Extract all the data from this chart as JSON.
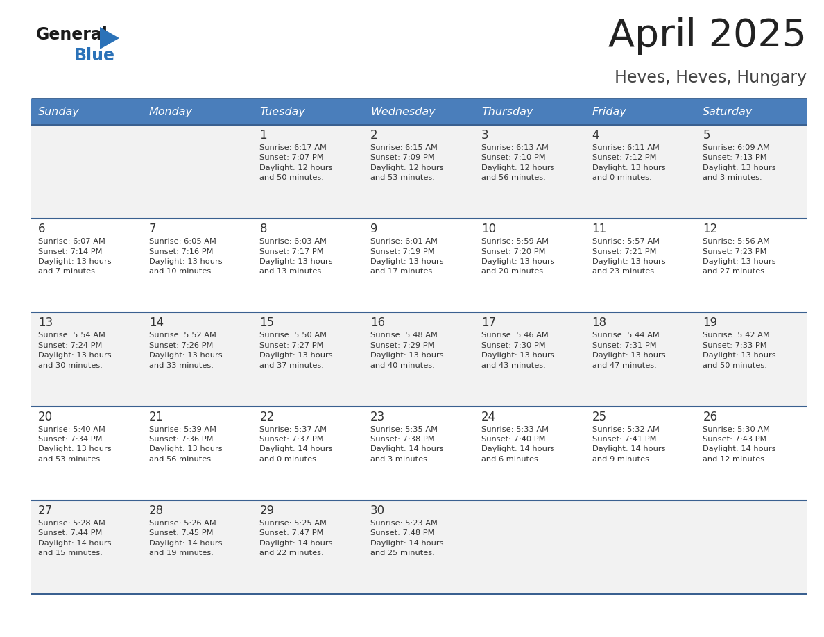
{
  "title": "April 2025",
  "subtitle": "Heves, Heves, Hungary",
  "days_of_week": [
    "Sunday",
    "Monday",
    "Tuesday",
    "Wednesday",
    "Thursday",
    "Friday",
    "Saturday"
  ],
  "header_bg": "#4a7ebb",
  "header_text": "#ffffff",
  "row_bg_even": "#f2f2f2",
  "row_bg_odd": "#ffffff",
  "divider_color": "#3a6090",
  "cell_text_color": "#333333",
  "day_num_color": "#333333",
  "logo_black": "#1a1a1a",
  "logo_blue": "#2b72b8",
  "title_color": "#222222",
  "subtitle_color": "#444444",
  "calendar_data": [
    [
      {
        "day": "",
        "sunrise": "",
        "sunset": "",
        "daylight": ""
      },
      {
        "day": "",
        "sunrise": "",
        "sunset": "",
        "daylight": ""
      },
      {
        "day": "1",
        "sunrise": "Sunrise: 6:17 AM",
        "sunset": "Sunset: 7:07 PM",
        "daylight": "Daylight: 12 hours\nand 50 minutes."
      },
      {
        "day": "2",
        "sunrise": "Sunrise: 6:15 AM",
        "sunset": "Sunset: 7:09 PM",
        "daylight": "Daylight: 12 hours\nand 53 minutes."
      },
      {
        "day": "3",
        "sunrise": "Sunrise: 6:13 AM",
        "sunset": "Sunset: 7:10 PM",
        "daylight": "Daylight: 12 hours\nand 56 minutes."
      },
      {
        "day": "4",
        "sunrise": "Sunrise: 6:11 AM",
        "sunset": "Sunset: 7:12 PM",
        "daylight": "Daylight: 13 hours\nand 0 minutes."
      },
      {
        "day": "5",
        "sunrise": "Sunrise: 6:09 AM",
        "sunset": "Sunset: 7:13 PM",
        "daylight": "Daylight: 13 hours\nand 3 minutes."
      }
    ],
    [
      {
        "day": "6",
        "sunrise": "Sunrise: 6:07 AM",
        "sunset": "Sunset: 7:14 PM",
        "daylight": "Daylight: 13 hours\nand 7 minutes."
      },
      {
        "day": "7",
        "sunrise": "Sunrise: 6:05 AM",
        "sunset": "Sunset: 7:16 PM",
        "daylight": "Daylight: 13 hours\nand 10 minutes."
      },
      {
        "day": "8",
        "sunrise": "Sunrise: 6:03 AM",
        "sunset": "Sunset: 7:17 PM",
        "daylight": "Daylight: 13 hours\nand 13 minutes."
      },
      {
        "day": "9",
        "sunrise": "Sunrise: 6:01 AM",
        "sunset": "Sunset: 7:19 PM",
        "daylight": "Daylight: 13 hours\nand 17 minutes."
      },
      {
        "day": "10",
        "sunrise": "Sunrise: 5:59 AM",
        "sunset": "Sunset: 7:20 PM",
        "daylight": "Daylight: 13 hours\nand 20 minutes."
      },
      {
        "day": "11",
        "sunrise": "Sunrise: 5:57 AM",
        "sunset": "Sunset: 7:21 PM",
        "daylight": "Daylight: 13 hours\nand 23 minutes."
      },
      {
        "day": "12",
        "sunrise": "Sunrise: 5:56 AM",
        "sunset": "Sunset: 7:23 PM",
        "daylight": "Daylight: 13 hours\nand 27 minutes."
      }
    ],
    [
      {
        "day": "13",
        "sunrise": "Sunrise: 5:54 AM",
        "sunset": "Sunset: 7:24 PM",
        "daylight": "Daylight: 13 hours\nand 30 minutes."
      },
      {
        "day": "14",
        "sunrise": "Sunrise: 5:52 AM",
        "sunset": "Sunset: 7:26 PM",
        "daylight": "Daylight: 13 hours\nand 33 minutes."
      },
      {
        "day": "15",
        "sunrise": "Sunrise: 5:50 AM",
        "sunset": "Sunset: 7:27 PM",
        "daylight": "Daylight: 13 hours\nand 37 minutes."
      },
      {
        "day": "16",
        "sunrise": "Sunrise: 5:48 AM",
        "sunset": "Sunset: 7:29 PM",
        "daylight": "Daylight: 13 hours\nand 40 minutes."
      },
      {
        "day": "17",
        "sunrise": "Sunrise: 5:46 AM",
        "sunset": "Sunset: 7:30 PM",
        "daylight": "Daylight: 13 hours\nand 43 minutes."
      },
      {
        "day": "18",
        "sunrise": "Sunrise: 5:44 AM",
        "sunset": "Sunset: 7:31 PM",
        "daylight": "Daylight: 13 hours\nand 47 minutes."
      },
      {
        "day": "19",
        "sunrise": "Sunrise: 5:42 AM",
        "sunset": "Sunset: 7:33 PM",
        "daylight": "Daylight: 13 hours\nand 50 minutes."
      }
    ],
    [
      {
        "day": "20",
        "sunrise": "Sunrise: 5:40 AM",
        "sunset": "Sunset: 7:34 PM",
        "daylight": "Daylight: 13 hours\nand 53 minutes."
      },
      {
        "day": "21",
        "sunrise": "Sunrise: 5:39 AM",
        "sunset": "Sunset: 7:36 PM",
        "daylight": "Daylight: 13 hours\nand 56 minutes."
      },
      {
        "day": "22",
        "sunrise": "Sunrise: 5:37 AM",
        "sunset": "Sunset: 7:37 PM",
        "daylight": "Daylight: 14 hours\nand 0 minutes."
      },
      {
        "day": "23",
        "sunrise": "Sunrise: 5:35 AM",
        "sunset": "Sunset: 7:38 PM",
        "daylight": "Daylight: 14 hours\nand 3 minutes."
      },
      {
        "day": "24",
        "sunrise": "Sunrise: 5:33 AM",
        "sunset": "Sunset: 7:40 PM",
        "daylight": "Daylight: 14 hours\nand 6 minutes."
      },
      {
        "day": "25",
        "sunrise": "Sunrise: 5:32 AM",
        "sunset": "Sunset: 7:41 PM",
        "daylight": "Daylight: 14 hours\nand 9 minutes."
      },
      {
        "day": "26",
        "sunrise": "Sunrise: 5:30 AM",
        "sunset": "Sunset: 7:43 PM",
        "daylight": "Daylight: 14 hours\nand 12 minutes."
      }
    ],
    [
      {
        "day": "27",
        "sunrise": "Sunrise: 5:28 AM",
        "sunset": "Sunset: 7:44 PM",
        "daylight": "Daylight: 14 hours\nand 15 minutes."
      },
      {
        "day": "28",
        "sunrise": "Sunrise: 5:26 AM",
        "sunset": "Sunset: 7:45 PM",
        "daylight": "Daylight: 14 hours\nand 19 minutes."
      },
      {
        "day": "29",
        "sunrise": "Sunrise: 5:25 AM",
        "sunset": "Sunset: 7:47 PM",
        "daylight": "Daylight: 14 hours\nand 22 minutes."
      },
      {
        "day": "30",
        "sunrise": "Sunrise: 5:23 AM",
        "sunset": "Sunset: 7:48 PM",
        "daylight": "Daylight: 14 hours\nand 25 minutes."
      },
      {
        "day": "",
        "sunrise": "",
        "sunset": "",
        "daylight": ""
      },
      {
        "day": "",
        "sunrise": "",
        "sunset": "",
        "daylight": ""
      },
      {
        "day": "",
        "sunrise": "",
        "sunset": "",
        "daylight": ""
      }
    ]
  ]
}
